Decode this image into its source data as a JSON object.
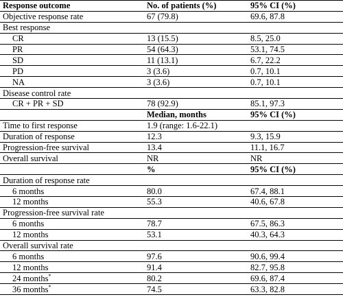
{
  "table": {
    "header": {
      "col1": "Response outcome",
      "col2": "No. of patients (%)",
      "col3": "95% CI (%)"
    },
    "response": {
      "orr": {
        "label": "Objective response rate",
        "value": "67 (79.8)",
        "ci": "69.6, 87.8"
      },
      "best_label": "Best response",
      "best": [
        {
          "label": "CR",
          "value": "13 (15.5)",
          "ci": "8.5, 25.0"
        },
        {
          "label": "PR",
          "value": "54 (64.3)",
          "ci": "53.1, 74.5"
        },
        {
          "label": "SD",
          "value": "11 (13.1)",
          "ci": "6.7, 22.2"
        },
        {
          "label": "PD",
          "value": "3 (3.6)",
          "ci": "0.7, 10.1"
        },
        {
          "label": "NA",
          "value": "3 (3.6)",
          "ci": "0.7, 10.1"
        }
      ],
      "dcr_label": "Disease control rate",
      "dcr": {
        "label": "CR + PR + SD",
        "value": "78 (92.9)",
        "ci": "85.1, 97.3"
      }
    },
    "median_header": {
      "col2": "Median, months",
      "col3": "95% CI (%)"
    },
    "median": [
      {
        "label": "Time to first response",
        "value": "1.9 (range: 1.6-22.1)",
        "ci": ""
      },
      {
        "label": "Duration of response",
        "value": "12.3",
        "ci": "9.3, 15.9"
      },
      {
        "label": "Progression-free survival",
        "value": "13.4",
        "ci": "11.1, 16.7"
      },
      {
        "label": "Overall survival",
        "value": "NR",
        "ci": "NR"
      }
    ],
    "pct_header": {
      "col2": "%",
      "col3": "95% CI (%)"
    },
    "dor_label": "Duration of response rate",
    "dor": [
      {
        "label": "6 months",
        "value": "80.0",
        "ci": "67.4, 88.1"
      },
      {
        "label": "12 months",
        "value": "55.3",
        "ci": "40.6, 67.8"
      }
    ],
    "pfs_label": "Progression-free survival rate",
    "pfs": [
      {
        "label": "6 months",
        "value": "78.7",
        "ci": "67.5, 86.3"
      },
      {
        "label": "12 months",
        "value": "53.1",
        "ci": "40.3, 64.3"
      }
    ],
    "os_label": "Overall survival rate",
    "os": [
      {
        "label": "6 months",
        "value": "97.6",
        "ci": "90.6, 99.4"
      },
      {
        "label": "12 months",
        "value": "91.4",
        "ci": "82.7, 95.8"
      },
      {
        "label": "24 months",
        "mark": "*",
        "value": "80.2",
        "ci": "69.6, 87.4"
      },
      {
        "label": "36 months",
        "mark": "*",
        "value": "74.5",
        "ci": "63.3, 82.8"
      }
    ]
  }
}
